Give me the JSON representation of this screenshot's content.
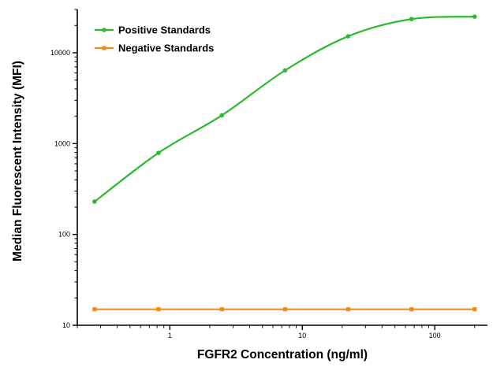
{
  "chart_data": {
    "type": "line",
    "title": "",
    "xlabel": "FGFR2 Concentration (ng/ml)",
    "ylabel": "Median Fluorescent Intensity (MFI)",
    "x_scale": "log",
    "y_scale": "log",
    "xlim": [
      0.2,
      250
    ],
    "ylim": [
      10,
      30000
    ],
    "x_ticks": [
      {
        "value": 1,
        "label": "1"
      },
      {
        "value": 10,
        "label": "10"
      },
      {
        "value": 100,
        "label": "100"
      }
    ],
    "y_ticks": [
      {
        "value": 10,
        "label": "10"
      },
      {
        "value": 100,
        "label": "100"
      },
      {
        "value": 1000,
        "label": "1000"
      },
      {
        "value": 10000,
        "label": "10000"
      }
    ],
    "grid": false,
    "legend_position": "top-left",
    "x": [
      0.27,
      0.82,
      2.47,
      7.41,
      22.2,
      66.7,
      200
    ],
    "series": [
      {
        "name": "Positive Standards",
        "color": "#2db92d",
        "marker": "circle",
        "values": [
          230,
          790,
          2050,
          6400,
          15200,
          23500,
          25000
        ],
        "fit_curve": true
      },
      {
        "name": "Negative Standards",
        "color": "#f08c1e",
        "marker": "square",
        "values": [
          15,
          15,
          15,
          15,
          15,
          15,
          15
        ],
        "fit_curve": false
      }
    ]
  }
}
